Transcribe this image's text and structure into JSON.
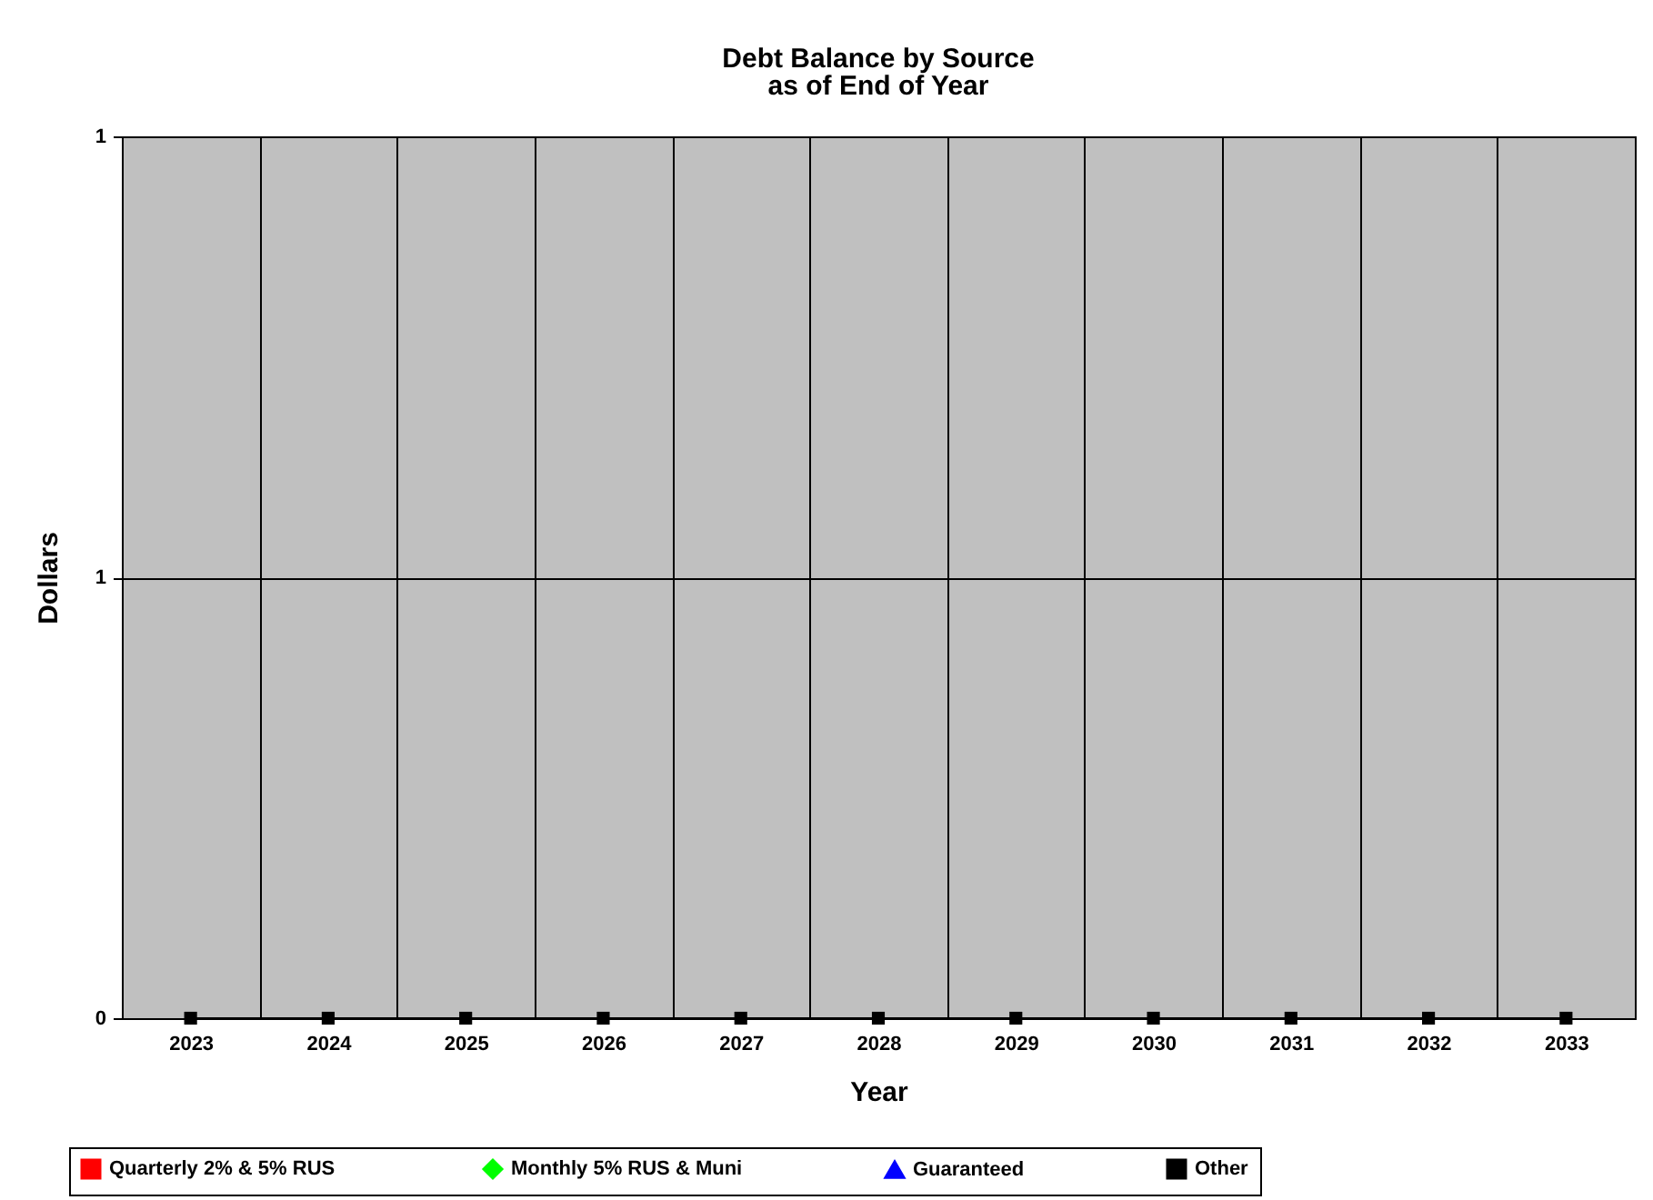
{
  "chart_data": {
    "type": "line",
    "title": "Debt Balance by Source",
    "subtitle": "as of End of Year",
    "xlabel": "Year",
    "ylabel": "Dollars",
    "categories": [
      "2023",
      "2024",
      "2025",
      "2026",
      "2027",
      "2028",
      "2029",
      "2030",
      "2031",
      "2032",
      "2033"
    ],
    "series": [
      {
        "name": "Quarterly 2% & 5%  RUS",
        "color": "#ff0000",
        "marker": "square",
        "values": [
          null,
          null,
          null,
          null,
          null,
          null,
          null,
          null,
          null,
          null,
          null
        ]
      },
      {
        "name": "Monthly 5% RUS & Muni",
        "color": "#00ff00",
        "marker": "diamond",
        "values": [
          null,
          null,
          null,
          null,
          null,
          null,
          null,
          null,
          null,
          null,
          null
        ]
      },
      {
        "name": "Guaranteed",
        "color": "#0000ff",
        "marker": "triangle",
        "values": [
          null,
          null,
          null,
          null,
          null,
          null,
          null,
          null,
          null,
          null,
          null
        ]
      },
      {
        "name": "Other",
        "color": "#000000",
        "marker": "square",
        "values": [
          0,
          0,
          0,
          0,
          0,
          0,
          0,
          0,
          0,
          0,
          0
        ]
      }
    ],
    "ylim": [
      0,
      1
    ],
    "yticks": [
      0,
      {
        "value": 0.5,
        "label": "1"
      },
      1
    ],
    "grid": true,
    "legend": "bottom",
    "line_style": "solid"
  }
}
